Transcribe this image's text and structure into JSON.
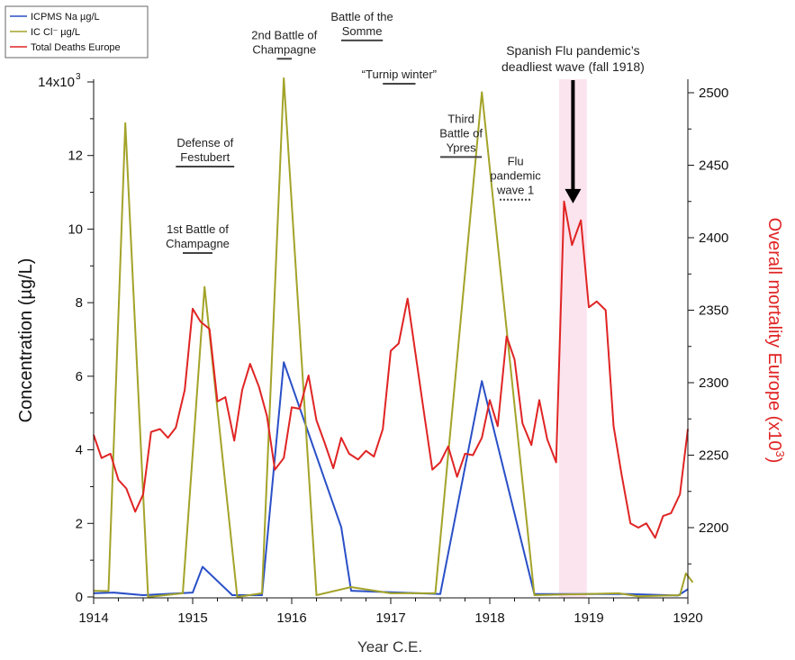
{
  "chart_data": {
    "type": "line",
    "xlabel": "Year C.E.",
    "ylabel_left": "Concentration (µg/L)",
    "ylabel_right": "Overall mortality Europe (x10",
    "ylabel_right_sup": "3",
    "ylabel_right_close": ")",
    "xlim": [
      1914,
      1920
    ],
    "ylim_left": [
      0,
      14000
    ],
    "ylim_right": [
      2150,
      2510
    ],
    "x_ticks": [
      "1914",
      "1915",
      "1916",
      "1917",
      "1918",
      "1919",
      "1920"
    ],
    "y_left_ticks": [
      "0",
      "2",
      "4",
      "6",
      "8",
      "10",
      "12",
      "14x10"
    ],
    "y_left_top_sup": "3",
    "y_right_ticks": [
      "2200",
      "2250",
      "2300",
      "2350",
      "2400",
      "2450",
      "2500"
    ],
    "legend": [
      {
        "label": "ICPMS  Na  µg/L",
        "color": "#2a4fc7"
      },
      {
        "label": "IC  Cl⁻ µg/L",
        "color": "#a3a32a"
      },
      {
        "label": "Total Deaths Europe",
        "color": "#e02424"
      }
    ],
    "series": [
      {
        "name": "ICPMS  Na  µg/L",
        "color": "#2a4fc7",
        "axis": "left",
        "points": [
          [
            1914.0,
            100
          ],
          [
            1914.2,
            120
          ],
          [
            1914.5,
            50
          ],
          [
            1915.0,
            120
          ],
          [
            1915.1,
            820
          ],
          [
            1915.4,
            50
          ],
          [
            1915.7,
            50
          ],
          [
            1915.92,
            6380
          ],
          [
            1916.5,
            1900
          ],
          [
            1916.6,
            170
          ],
          [
            1917.5,
            80
          ],
          [
            1917.92,
            5870
          ],
          [
            1918.45,
            80
          ],
          [
            1919.4,
            80
          ],
          [
            1919.9,
            40
          ],
          [
            1920.0,
            210
          ]
        ]
      },
      {
        "name": "IC  Cl⁻ µg/L",
        "color": "#a3a32a",
        "axis": "left",
        "points": [
          [
            1914.0,
            170
          ],
          [
            1914.15,
            160
          ],
          [
            1914.32,
            12880
          ],
          [
            1914.55,
            0
          ],
          [
            1914.9,
            100
          ],
          [
            1915.12,
            8430
          ],
          [
            1915.45,
            0
          ],
          [
            1915.7,
            100
          ],
          [
            1915.92,
            14100
          ],
          [
            1916.25,
            50
          ],
          [
            1916.6,
            270
          ],
          [
            1917.0,
            100
          ],
          [
            1917.45,
            100
          ],
          [
            1917.92,
            13720
          ],
          [
            1918.45,
            50
          ],
          [
            1919.3,
            100
          ],
          [
            1919.5,
            20
          ],
          [
            1919.92,
            50
          ],
          [
            1919.98,
            640
          ],
          [
            1920.05,
            400
          ]
        ]
      },
      {
        "name": "Total Deaths Europe",
        "color": "#e02424",
        "axis": "right",
        "points": [
          [
            1914.0,
            2264
          ],
          [
            1914.08,
            2248
          ],
          [
            1914.17,
            2251
          ],
          [
            1914.25,
            2233
          ],
          [
            1914.33,
            2227
          ],
          [
            1914.42,
            2211
          ],
          [
            1914.5,
            2223
          ],
          [
            1914.58,
            2266
          ],
          [
            1914.67,
            2268
          ],
          [
            1914.75,
            2262
          ],
          [
            1914.83,
            2269
          ],
          [
            1914.92,
            2295
          ],
          [
            1915.0,
            2351
          ],
          [
            1915.08,
            2342
          ],
          [
            1915.17,
            2337
          ],
          [
            1915.25,
            2287
          ],
          [
            1915.33,
            2290
          ],
          [
            1915.42,
            2260
          ],
          [
            1915.5,
            2295
          ],
          [
            1915.58,
            2313
          ],
          [
            1915.67,
            2297
          ],
          [
            1915.75,
            2277
          ],
          [
            1915.83,
            2240
          ],
          [
            1915.92,
            2248
          ],
          [
            1916.0,
            2283
          ],
          [
            1916.08,
            2282
          ],
          [
            1916.17,
            2305
          ],
          [
            1916.25,
            2274
          ],
          [
            1916.33,
            2259
          ],
          [
            1916.42,
            2241
          ],
          [
            1916.5,
            2262
          ],
          [
            1916.58,
            2251
          ],
          [
            1916.67,
            2247
          ],
          [
            1916.75,
            2253
          ],
          [
            1916.83,
            2249
          ],
          [
            1916.92,
            2268
          ],
          [
            1917.0,
            2322
          ],
          [
            1917.08,
            2327
          ],
          [
            1917.17,
            2358
          ],
          [
            1917.25,
            2320
          ],
          [
            1917.33,
            2282
          ],
          [
            1917.42,
            2240
          ],
          [
            1917.5,
            2245
          ],
          [
            1917.58,
            2256
          ],
          [
            1917.67,
            2235
          ],
          [
            1917.75,
            2251
          ],
          [
            1917.83,
            2250
          ],
          [
            1917.92,
            2262
          ],
          [
            1918.0,
            2288
          ],
          [
            1918.08,
            2270
          ],
          [
            1918.17,
            2332
          ],
          [
            1918.25,
            2316
          ],
          [
            1918.33,
            2272
          ],
          [
            1918.42,
            2257
          ],
          [
            1918.5,
            2288
          ],
          [
            1918.58,
            2261
          ],
          [
            1918.67,
            2245
          ],
          [
            1918.75,
            2425
          ],
          [
            1918.83,
            2395
          ],
          [
            1918.92,
            2412
          ],
          [
            1919.0,
            2352
          ],
          [
            1919.08,
            2356
          ],
          [
            1919.17,
            2350
          ],
          [
            1919.25,
            2270
          ],
          [
            1919.33,
            2237
          ],
          [
            1919.42,
            2203
          ],
          [
            1919.5,
            2200
          ],
          [
            1919.58,
            2203
          ],
          [
            1919.67,
            2193
          ],
          [
            1919.75,
            2208
          ],
          [
            1919.83,
            2210
          ],
          [
            1919.92,
            2223
          ],
          [
            1920.0,
            2268
          ]
        ]
      }
    ],
    "shaded_region": {
      "x_start": 1918.7,
      "x_end": 1918.98,
      "color": "#fbe4ee"
    },
    "annotations": [
      {
        "lines": [
          "1st Battle of",
          "Champagne"
        ],
        "x_start": 1914.9,
        "x_end": 1915.2,
        "bar_y": 9350,
        "style": "solid"
      },
      {
        "lines": [
          "Defense of",
          "Festubert"
        ],
        "x_start": 1914.83,
        "x_end": 1915.42,
        "bar_y": 11700,
        "style": "solid"
      },
      {
        "lines": [
          "2nd Battle of",
          "Champagne"
        ],
        "x_start": 1915.85,
        "x_end": 1916.0,
        "bar_y": 14630,
        "style": "solid"
      },
      {
        "lines": [
          "Battle of the",
          "Somme"
        ],
        "x_start": 1916.5,
        "x_end": 1916.92,
        "bar_y": 15130,
        "style": "solid"
      },
      {
        "lines": [
          "“Turnip winter”"
        ],
        "x_start": 1916.92,
        "x_end": 1917.25,
        "bar_y": 13950,
        "style": "solid"
      },
      {
        "lines": [
          "Third",
          "Battle of",
          "Ypres"
        ],
        "x_start": 1917.5,
        "x_end": 1917.92,
        "bar_y": 11960,
        "style": "solid"
      },
      {
        "lines": [
          "Flu",
          "pandemic",
          "wave 1"
        ],
        "x_start": 1918.1,
        "x_end": 1918.42,
        "bar_y": 10800,
        "style": "dotted"
      },
      {
        "lines": [
          "Spanish Flu pandemic’s",
          "deadliest wave (fall 1918)"
        ],
        "x_start": 1918.7,
        "x_end": 1918.98,
        "bar_y": null,
        "style": "none"
      }
    ],
    "arrow": {
      "x": 1918.84,
      "y_from": 14050,
      "y_to": 10700
    },
    "grid": false,
    "legend_position": "top-left"
  }
}
